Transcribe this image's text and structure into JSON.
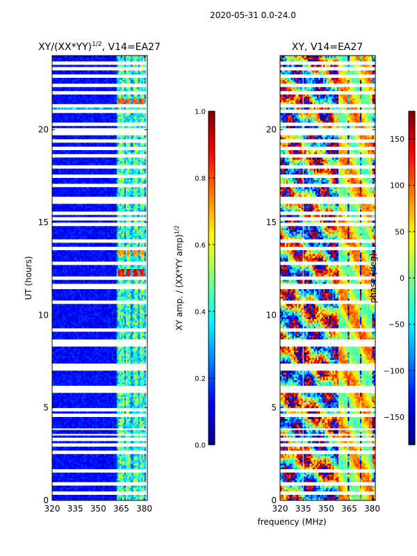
{
  "figure": {
    "suptitle": "2020-05-31 0.0-24.0",
    "xlabel": "frequency (MHz)"
  },
  "colors": {
    "jet": [
      "#00007f",
      "#0000ff",
      "#007fff",
      "#00ffff",
      "#7fff7f",
      "#ffff00",
      "#ff7f00",
      "#ff0000",
      "#7f0000"
    ],
    "background": "#ffffff",
    "axis": "#000000"
  },
  "chart_data": [
    {
      "type": "heatmap",
      "title_main": "XY/(XX*YY)",
      "title_sup": "1/2",
      "title_rest": ", V14=EA27",
      "xlabel": "frequency (MHz)",
      "ylabel": "UT (hours)",
      "xlim": [
        320,
        382
      ],
      "ylim": [
        0,
        24
      ],
      "xticks": [
        320,
        335,
        350,
        365,
        380
      ],
      "yticks": [
        0,
        5,
        10,
        15,
        20
      ],
      "colorbar": {
        "label_main": "XY amp. / (XX*YY amp)",
        "label_sup": "1/2",
        "range": [
          0.0,
          1.0
        ],
        "ticks": [
          "0.0",
          "0.2",
          "0.4",
          "0.6",
          "0.8",
          "1.0"
        ]
      },
      "features": {
        "channel_bands_mhz": [
          [
            363,
            367
          ],
          [
            368,
            371
          ],
          [
            373,
            376
          ],
          [
            377,
            380
          ]
        ],
        "band_level": 0.45,
        "background_level": 0.08,
        "hot_spots": [
          {
            "ut": 12.3,
            "level": 0.88
          },
          {
            "ut": 21.5,
            "level": 0.8
          },
          {
            "ut": 13.4,
            "level": 0.7
          }
        ]
      }
    },
    {
      "type": "heatmap",
      "title": "XY, V14=EA27",
      "xlabel": "frequency (MHz)",
      "ylabel": "",
      "xlim": [
        320,
        382
      ],
      "ylim": [
        0,
        24
      ],
      "xticks": [
        320,
        335,
        350,
        365,
        380
      ],
      "yticks": [
        0,
        5,
        10,
        15,
        20
      ],
      "colorbar": {
        "label": "phase (deg)",
        "range": [
          -180,
          180
        ],
        "ticks": [
          "150",
          "100",
          "50",
          "0",
          "−50",
          "−100",
          "−150"
        ]
      },
      "features": {
        "phase_wraps": true,
        "channel_bands_mhz": [
          [
            358,
            364
          ],
          [
            365,
            372
          ],
          [
            373,
            380
          ]
        ]
      }
    }
  ],
  "flagged_ut_rows": [
    0.4,
    0.9,
    1.6,
    2.6,
    2.65,
    3.0,
    3.3,
    3.55,
    3.85,
    4.6,
    4.9,
    5.9,
    6.1,
    7.1,
    7.3,
    8.4,
    8.6,
    9.2,
    10.7,
    10.75,
    11.5,
    11.6,
    12.0,
    12.8,
    13.6,
    14.0,
    14.9,
    15.2,
    15.5,
    16.1,
    16.3,
    17.0,
    17.5,
    18.0,
    18.6,
    19.0,
    19.4,
    19.8,
    20.0,
    20.3,
    21.0,
    21.3,
    22.0,
    22.4,
    22.9,
    23.3,
    23.6
  ]
}
